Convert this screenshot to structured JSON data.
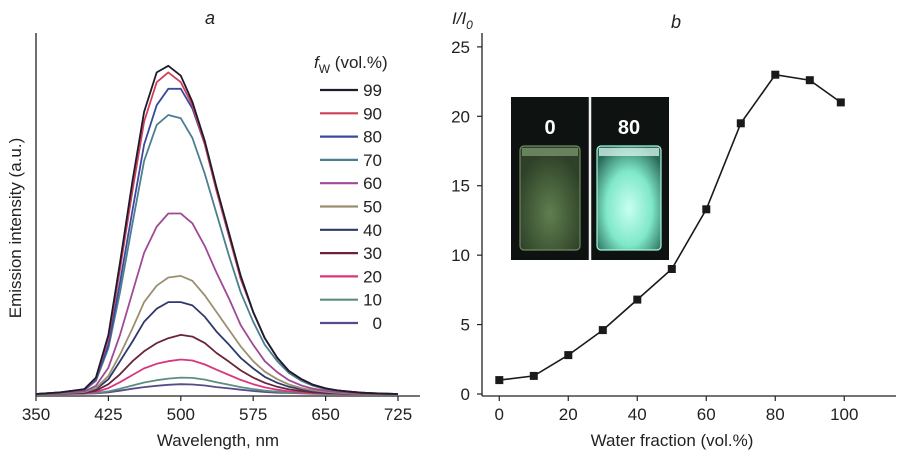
{
  "chart_data": [
    {
      "panel": "a",
      "type": "line",
      "xlabel": "Wavelength, nm",
      "ylabel": "Emission intensity (a.u.)",
      "xlim": [
        350,
        725
      ],
      "x_ticks": [
        "350",
        "425",
        "500",
        "575",
        "650",
        "725"
      ],
      "ylim": [
        0,
        1.1
      ],
      "legend": {
        "title_main": "f",
        "title_sub": "W",
        "title_rest": " (vol.%)",
        "placement": "top-right"
      },
      "x": [
        350,
        375,
        400,
        412,
        425,
        437,
        450,
        462,
        475,
        487,
        500,
        512,
        525,
        537,
        550,
        562,
        575,
        587,
        600,
        612,
        625,
        637,
        650,
        662,
        675,
        687,
        700,
        712,
        725
      ],
      "series": [
        {
          "name": "99",
          "color": "#1c1c2c",
          "values": [
            0.0,
            0.005,
            0.015,
            0.05,
            0.18,
            0.4,
            0.65,
            0.86,
            0.98,
            1.0,
            0.97,
            0.89,
            0.77,
            0.63,
            0.49,
            0.36,
            0.25,
            0.17,
            0.11,
            0.07,
            0.045,
            0.028,
            0.017,
            0.011,
            0.007,
            0.004,
            0.002,
            0.001,
            0.0
          ]
        },
        {
          "name": "90",
          "color": "#d0405a",
          "values": [
            0.0,
            0.005,
            0.014,
            0.048,
            0.17,
            0.38,
            0.62,
            0.83,
            0.95,
            0.98,
            0.95,
            0.88,
            0.76,
            0.62,
            0.48,
            0.35,
            0.25,
            0.17,
            0.11,
            0.07,
            0.045,
            0.028,
            0.017,
            0.011,
            0.007,
            0.004,
            0.002,
            0.001,
            0.0
          ]
        },
        {
          "name": "80",
          "color": "#3b4a9c",
          "values": [
            0.0,
            0.005,
            0.013,
            0.045,
            0.15,
            0.34,
            0.56,
            0.76,
            0.88,
            0.93,
            0.93,
            0.87,
            0.76,
            0.62,
            0.48,
            0.36,
            0.25,
            0.17,
            0.11,
            0.07,
            0.045,
            0.028,
            0.017,
            0.011,
            0.007,
            0.004,
            0.002,
            0.001,
            0.0
          ]
        },
        {
          "name": "70",
          "color": "#4a7f92",
          "values": [
            0.0,
            0.004,
            0.012,
            0.04,
            0.14,
            0.31,
            0.52,
            0.71,
            0.82,
            0.85,
            0.84,
            0.78,
            0.67,
            0.55,
            0.42,
            0.31,
            0.22,
            0.15,
            0.1,
            0.064,
            0.04,
            0.025,
            0.015,
            0.01,
            0.006,
            0.004,
            0.002,
            0.001,
            0.0
          ]
        },
        {
          "name": "60",
          "color": "#a04a95",
          "values": [
            0.0,
            0.003,
            0.008,
            0.025,
            0.08,
            0.18,
            0.31,
            0.43,
            0.51,
            0.55,
            0.55,
            0.52,
            0.45,
            0.37,
            0.29,
            0.21,
            0.15,
            0.1,
            0.066,
            0.042,
            0.026,
            0.016,
            0.01,
            0.006,
            0.004,
            0.002,
            0.001,
            0.0,
            0.0
          ]
        },
        {
          "name": "50",
          "color": "#9a9070",
          "values": [
            0.0,
            0.002,
            0.006,
            0.018,
            0.055,
            0.12,
            0.2,
            0.28,
            0.33,
            0.355,
            0.36,
            0.345,
            0.3,
            0.25,
            0.195,
            0.145,
            0.1,
            0.068,
            0.045,
            0.029,
            0.018,
            0.011,
            0.007,
            0.004,
            0.002,
            0.001,
            0.0,
            0.0,
            0.0
          ]
        },
        {
          "name": "40",
          "color": "#2e3a6a",
          "values": [
            0.0,
            0.002,
            0.005,
            0.014,
            0.045,
            0.1,
            0.16,
            0.22,
            0.26,
            0.28,
            0.28,
            0.27,
            0.235,
            0.19,
            0.15,
            0.11,
            0.078,
            0.052,
            0.034,
            0.022,
            0.014,
            0.009,
            0.005,
            0.003,
            0.002,
            0.001,
            0.0,
            0.0,
            0.0
          ]
        },
        {
          "name": "30",
          "color": "#6a2438",
          "values": [
            0.0,
            0.001,
            0.003,
            0.01,
            0.03,
            0.06,
            0.1,
            0.13,
            0.155,
            0.17,
            0.18,
            0.175,
            0.155,
            0.125,
            0.098,
            0.072,
            0.05,
            0.034,
            0.022,
            0.014,
            0.009,
            0.005,
            0.003,
            0.002,
            0.001,
            0.0,
            0.0,
            0.0,
            0.0
          ]
        },
        {
          "name": "20",
          "color": "#d9377d",
          "values": [
            0.0,
            0.001,
            0.002,
            0.006,
            0.018,
            0.036,
            0.058,
            0.078,
            0.092,
            0.1,
            0.105,
            0.102,
            0.09,
            0.074,
            0.058,
            0.043,
            0.03,
            0.02,
            0.013,
            0.008,
            0.005,
            0.003,
            0.002,
            0.001,
            0.0,
            0.0,
            0.0,
            0.0,
            0.0
          ]
        },
        {
          "name": "10",
          "color": "#5a8f80",
          "values": [
            0.0,
            0.001,
            0.001,
            0.003,
            0.008,
            0.016,
            0.026,
            0.035,
            0.042,
            0.047,
            0.05,
            0.049,
            0.044,
            0.036,
            0.028,
            0.021,
            0.015,
            0.01,
            0.007,
            0.004,
            0.003,
            0.002,
            0.001,
            0.0,
            0.0,
            0.0,
            0.0,
            0.0,
            0.0
          ]
        },
        {
          "name": "0",
          "color": "#5a4a8c",
          "values": [
            0.0,
            0.0,
            0.001,
            0.002,
            0.005,
            0.01,
            0.016,
            0.021,
            0.025,
            0.028,
            0.03,
            0.029,
            0.026,
            0.021,
            0.017,
            0.013,
            0.009,
            0.006,
            0.004,
            0.003,
            0.002,
            0.001,
            0.0,
            0.0,
            0.0,
            0.0,
            0.0,
            0.0,
            0.0
          ]
        }
      ]
    },
    {
      "panel": "b",
      "type": "line",
      "ylabel_main": "I/I",
      "ylabel_sub": "0",
      "xlabel": "Water fraction (vol.%)",
      "xlim": [
        -5,
        115
      ],
      "ylim": [
        0,
        26
      ],
      "x_ticks": [
        "0",
        "20",
        "40",
        "60",
        "80",
        "100"
      ],
      "y_ticks": [
        "0",
        "5",
        "10",
        "15",
        "20",
        "25"
      ],
      "series": [
        {
          "color": "#1a1a1a",
          "x": [
            0,
            10,
            20,
            30,
            40,
            50,
            60,
            70,
            80,
            90,
            99
          ],
          "y": [
            1.0,
            1.3,
            2.8,
            4.6,
            6.8,
            9.0,
            13.3,
            19.5,
            23.0,
            22.6,
            21.0
          ]
        }
      ],
      "inset": {
        "labels": [
          "0",
          "80"
        ],
        "vial_colors": [
          "#4a6a3e",
          "#8ff0d2"
        ]
      }
    }
  ]
}
